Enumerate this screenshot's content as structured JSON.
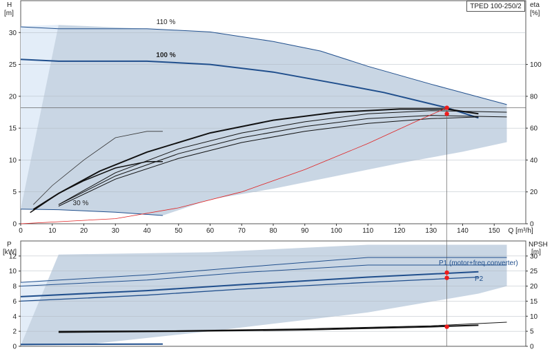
{
  "title": "TPED 100-250/2",
  "chart_data": [
    {
      "type": "line",
      "name": "pump-curve",
      "axes": {
        "left": {
          "label_top": "H",
          "label_unit": "[m]",
          "range": [
            0,
            35
          ],
          "ticks": [
            0,
            5,
            10,
            15,
            20,
            25,
            30
          ]
        },
        "right": {
          "label_top": "eta",
          "label_unit": "[%]",
          "range": [
            0,
            140
          ],
          "ticks": [
            0,
            20,
            40,
            60,
            80,
            100
          ]
        },
        "bottom": {
          "label": "Q [m³/h]",
          "range": [
            0,
            160
          ],
          "ticks": [
            0,
            10,
            20,
            30,
            40,
            50,
            60,
            70,
            80,
            90,
            100,
            110,
            120,
            130,
            140,
            150
          ]
        }
      },
      "speed_labels": {
        "max": "110 %",
        "nominal": "100 %",
        "min": "30 %"
      },
      "series": {
        "h_110": [
          [
            0,
            30.9
          ],
          [
            12,
            30.6
          ],
          [
            40,
            30.6
          ],
          [
            60,
            30.1
          ],
          [
            80,
            28.6
          ],
          [
            95,
            27.1
          ],
          [
            110,
            24.7
          ],
          [
            130,
            21.9
          ],
          [
            154,
            18.7
          ]
        ],
        "h_100": [
          [
            0,
            25.8
          ],
          [
            12,
            25.5
          ],
          [
            40,
            25.5
          ],
          [
            60,
            25.0
          ],
          [
            80,
            23.8
          ],
          [
            100,
            22.0
          ],
          [
            115,
            20.6
          ],
          [
            135,
            18.2
          ],
          [
            145,
            16.6
          ]
        ],
        "h_30": [
          [
            0,
            2.3
          ],
          [
            12,
            2.2
          ],
          [
            30,
            1.8
          ],
          [
            45,
            1.3
          ]
        ],
        "eta_100": [
          [
            4,
            9
          ],
          [
            12,
            19
          ],
          [
            25,
            33
          ],
          [
            40,
            45
          ],
          [
            60,
            57
          ],
          [
            80,
            65
          ],
          [
            100,
            70
          ],
          [
            120,
            72
          ],
          [
            135,
            72
          ],
          [
            145,
            69
          ]
        ],
        "eta_110": [
          [
            12,
            12
          ],
          [
            30,
            32
          ],
          [
            50,
            47
          ],
          [
            70,
            57
          ],
          [
            90,
            64
          ],
          [
            110,
            69
          ],
          [
            130,
            71
          ],
          [
            154,
            70
          ]
        ],
        "eta_mid": [
          [
            12,
            12
          ],
          [
            30,
            30
          ],
          [
            50,
            44
          ],
          [
            70,
            54
          ],
          [
            90,
            61
          ],
          [
            110,
            66
          ],
          [
            130,
            68
          ],
          [
            154,
            67
          ]
        ],
        "eta_low": [
          [
            12,
            11
          ],
          [
            30,
            28
          ],
          [
            50,
            41
          ],
          [
            70,
            51
          ],
          [
            90,
            58
          ],
          [
            110,
            63
          ],
          [
            130,
            66
          ],
          [
            145,
            67
          ]
        ],
        "eta_30_thin": [
          [
            4,
            12
          ],
          [
            10,
            24
          ],
          [
            20,
            40
          ],
          [
            30,
            54
          ],
          [
            40,
            58
          ],
          [
            45,
            58
          ]
        ],
        "eta_30_thick": [
          [
            3,
            7
          ],
          [
            12,
            19
          ],
          [
            20,
            27
          ],
          [
            30,
            35
          ],
          [
            40,
            39
          ],
          [
            45,
            39
          ]
        ],
        "system_curve": [
          [
            0,
            0
          ],
          [
            30,
            0.8
          ],
          [
            50,
            2.5
          ],
          [
            70,
            5.0
          ],
          [
            90,
            8.5
          ],
          [
            110,
            12.6
          ],
          [
            125,
            16.0
          ],
          [
            135,
            18.2
          ]
        ]
      },
      "operating_point": {
        "q": 135,
        "h": 18.2,
        "eta": 69
      },
      "envelope": {
        "upper": [
          [
            12,
            31.2
          ],
          [
            40,
            30.6
          ],
          [
            60,
            30.1
          ],
          [
            80,
            28.6
          ],
          [
            95,
            27.1
          ],
          [
            110,
            24.7
          ],
          [
            130,
            21.9
          ],
          [
            154,
            18.7
          ]
        ],
        "lower": [
          [
            154,
            12.8
          ],
          [
            140,
            11.3
          ],
          [
            120,
            9.5
          ],
          [
            100,
            7.5
          ],
          [
            80,
            5.5
          ],
          [
            60,
            3.8
          ],
          [
            45,
            1.3
          ],
          [
            30,
            1.8
          ],
          [
            12,
            2.2
          ],
          [
            0,
            2.3
          ]
        ]
      }
    },
    {
      "type": "line",
      "name": "power-npsh",
      "axes": {
        "left": {
          "label_top": "P",
          "label_unit": "[kW]",
          "range": [
            0,
            14
          ],
          "ticks": [
            0,
            2,
            4,
            6,
            8,
            10,
            12
          ]
        },
        "right": {
          "label_top": "NPSH",
          "label_unit": "[m]",
          "range": [
            0,
            35
          ],
          "ticks": [
            0,
            5,
            10,
            15,
            20,
            25,
            30
          ]
        },
        "bottom": {
          "range": [
            0,
            160
          ]
        }
      },
      "legend": {
        "p1": "P1 (motor+freq.converter)",
        "p2": "P2"
      },
      "series": {
        "p1_110": [
          [
            0,
            8.5
          ],
          [
            40,
            9.5
          ],
          [
            70,
            10.5
          ],
          [
            110,
            11.8
          ],
          [
            154,
            11.8
          ]
        ],
        "p2_110": [
          [
            0,
            8.0
          ],
          [
            40,
            8.8
          ],
          [
            70,
            9.8
          ],
          [
            110,
            10.8
          ],
          [
            154,
            10.8
          ]
        ],
        "p1_100": [
          [
            0,
            6.6
          ],
          [
            40,
            7.4
          ],
          [
            70,
            8.2
          ],
          [
            110,
            9.2
          ],
          [
            145,
            9.9
          ]
        ],
        "p2_100": [
          [
            0,
            6.0
          ],
          [
            40,
            6.8
          ],
          [
            70,
            7.6
          ],
          [
            110,
            8.5
          ],
          [
            145,
            9.2
          ]
        ],
        "npsh_110": [
          [
            12,
            5.0
          ],
          [
            50,
            5.2
          ],
          [
            90,
            5.8
          ],
          [
            130,
            6.8
          ],
          [
            154,
            8.0
          ]
        ],
        "npsh_100": [
          [
            12,
            4.7
          ],
          [
            50,
            5.0
          ],
          [
            90,
            5.5
          ],
          [
            130,
            6.5
          ],
          [
            145,
            7.0
          ]
        ],
        "p_30": [
          [
            0,
            0.25
          ],
          [
            45,
            0.3
          ]
        ]
      },
      "operating_points": {
        "p1": 9.8,
        "p2": 9.1,
        "npsh": 6.5
      },
      "envelope": {
        "upper": [
          [
            12,
            12.2
          ],
          [
            60,
            12.5
          ],
          [
            110,
            13.5
          ],
          [
            154,
            13.5
          ]
        ],
        "lower": [
          [
            154,
            8.0
          ],
          [
            145,
            7.0
          ],
          [
            110,
            4.5
          ],
          [
            60,
            2.0
          ],
          [
            20,
            0.2
          ],
          [
            0,
            0.1
          ]
        ]
      }
    }
  ]
}
